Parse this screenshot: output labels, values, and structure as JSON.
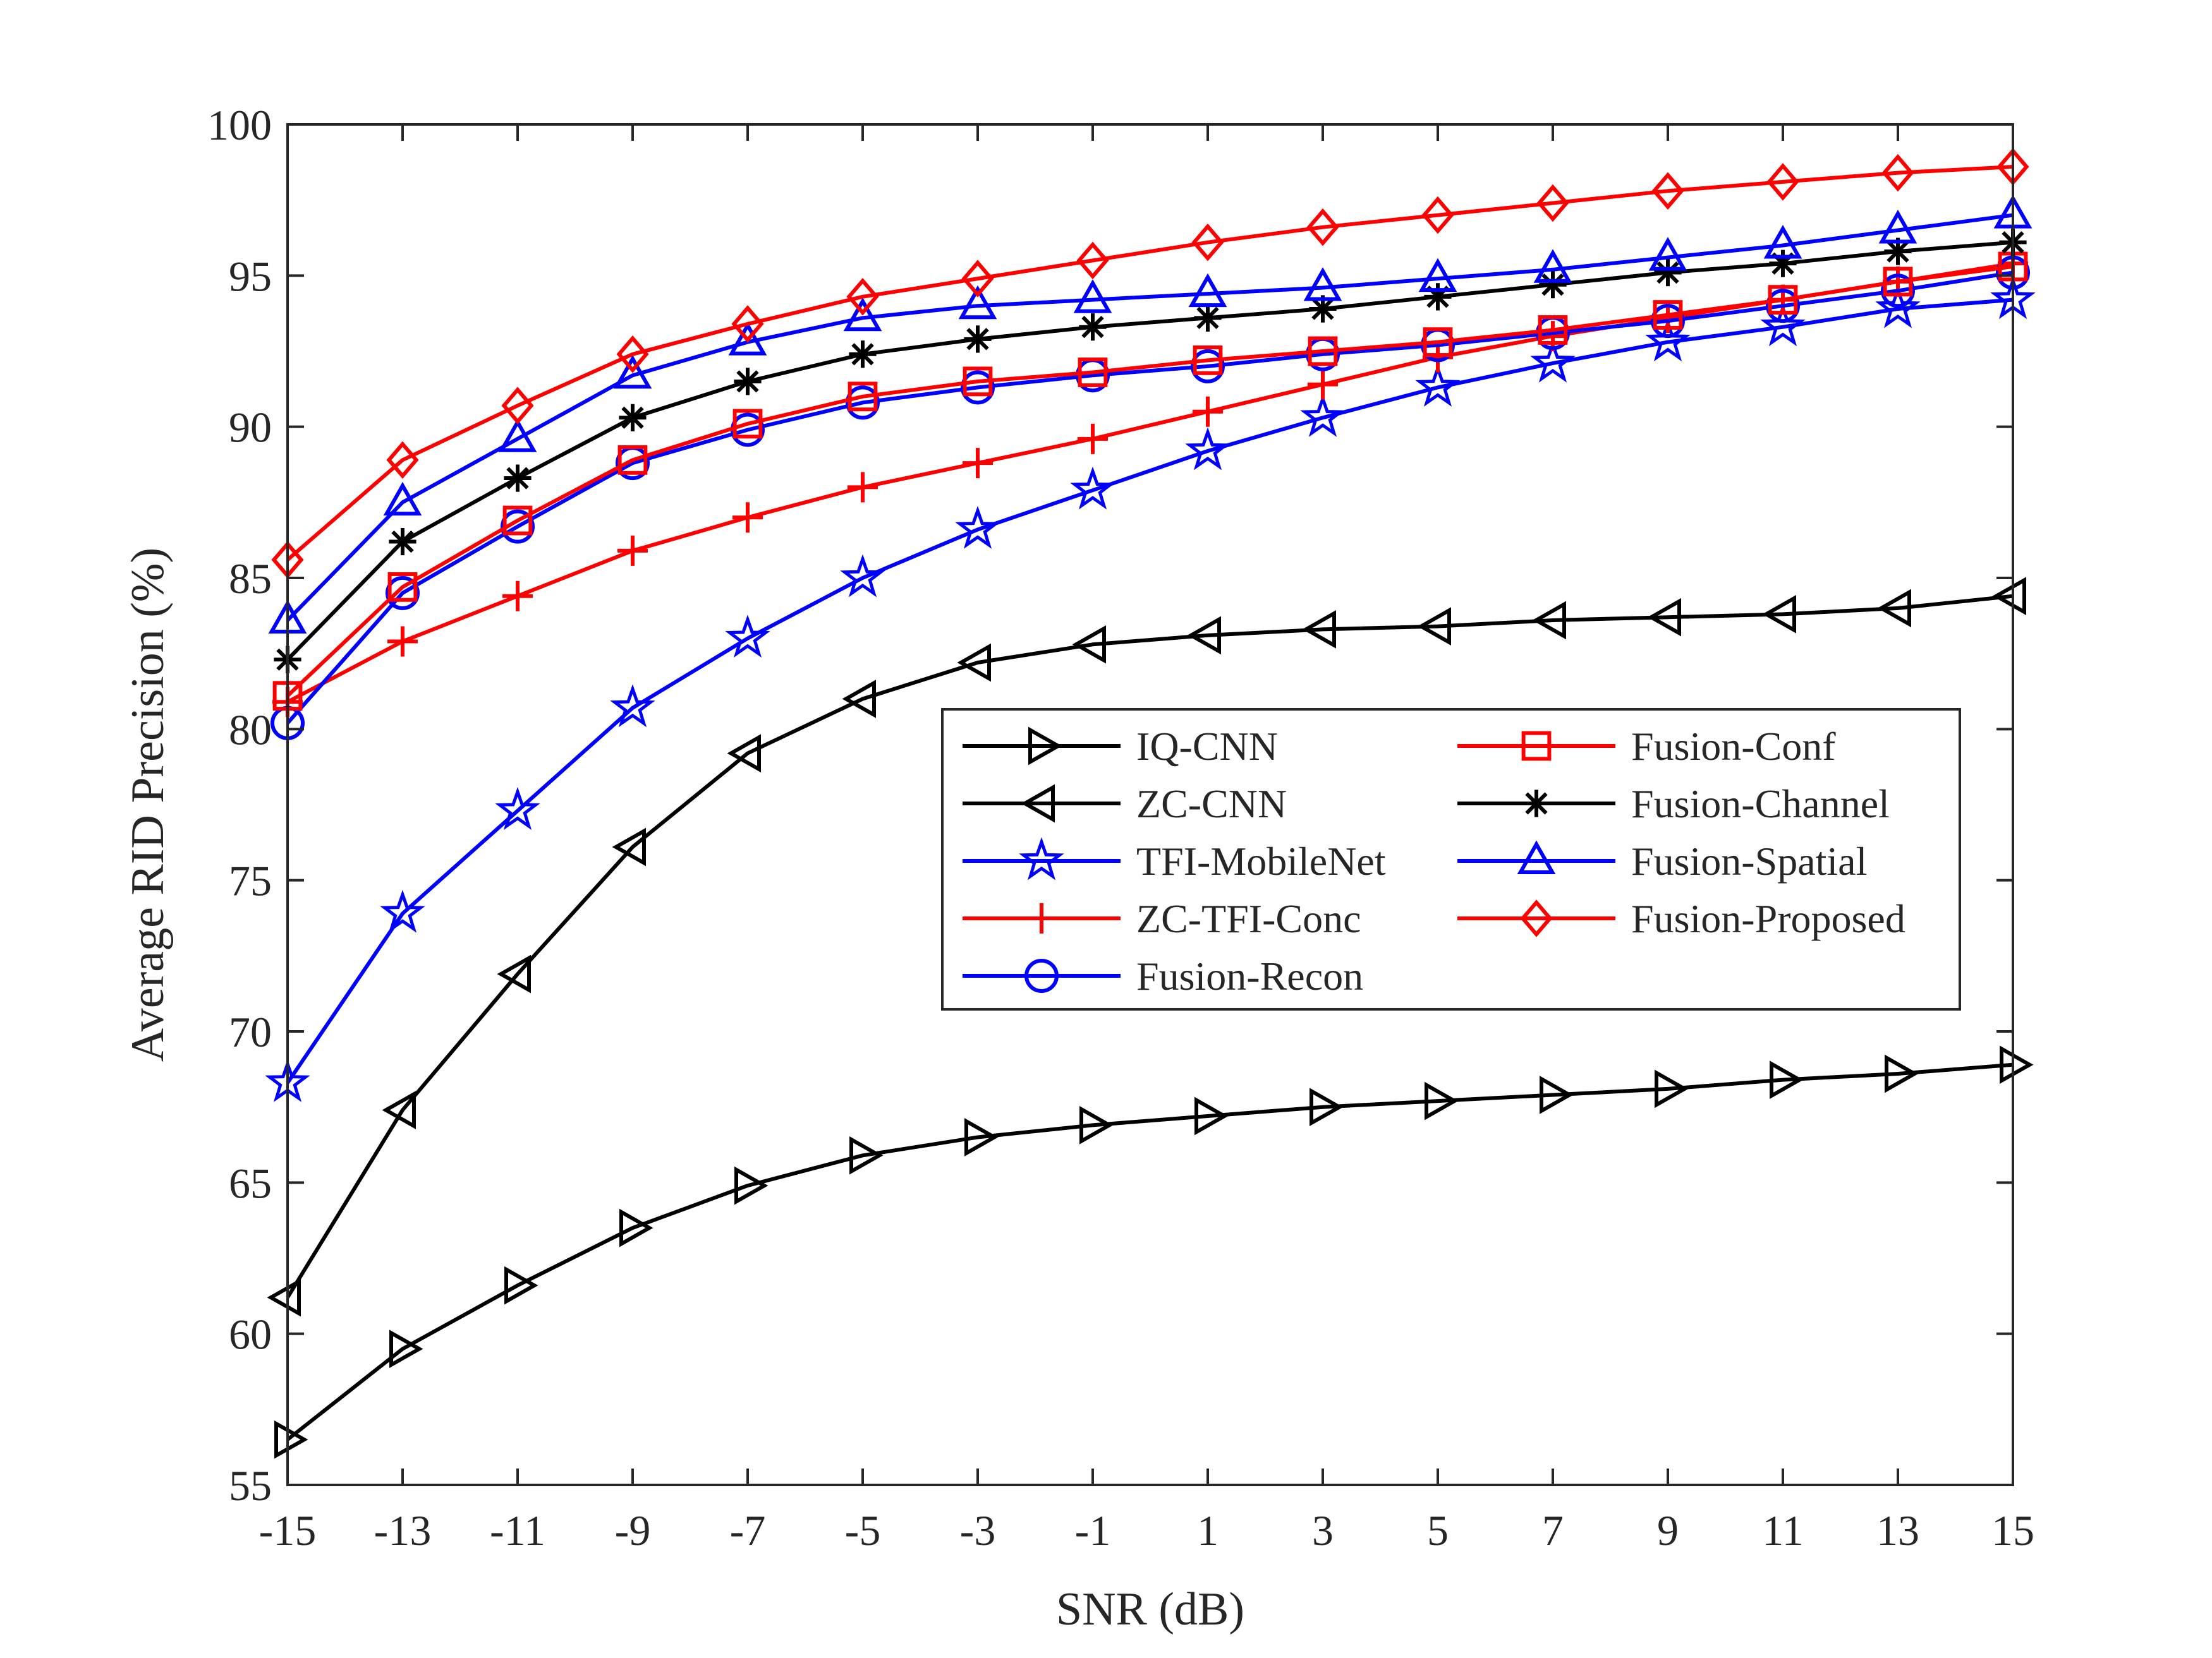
{
  "chart_data": {
    "type": "line",
    "title": "",
    "xlabel": "SNR (dB)",
    "ylabel": "Average RID Precision (%)",
    "x": [
      -15,
      -13,
      -11,
      -9,
      -7,
      -5,
      -3,
      -1,
      1,
      3,
      5,
      7,
      9,
      11,
      13,
      15
    ],
    "x_tick_labels": [
      "-15",
      "-13",
      "-11",
      "-9",
      "-7",
      "-5",
      "-3",
      "-1",
      "1",
      "3",
      "5",
      "7",
      "9",
      "11",
      "13",
      "15"
    ],
    "xlim": [
      -15,
      15
    ],
    "ylim": [
      55,
      100
    ],
    "y_ticks": [
      55,
      60,
      65,
      70,
      75,
      80,
      85,
      90,
      95,
      100
    ],
    "y_tick_labels": [
      "55",
      "60",
      "65",
      "70",
      "75",
      "80",
      "85",
      "90",
      "95",
      "100"
    ],
    "legend_position": "center-right",
    "grid": false,
    "series": [
      {
        "name": "IQ-CNN",
        "color": "#000000",
        "marker": "triangle-right",
        "values": [
          56.5,
          59.5,
          61.6,
          63.5,
          64.9,
          65.9,
          66.5,
          66.9,
          67.2,
          67.5,
          67.7,
          67.9,
          68.1,
          68.4,
          68.6,
          68.9
        ]
      },
      {
        "name": "ZC-CNN",
        "color": "#000000",
        "marker": "triangle-left",
        "values": [
          61.2,
          67.4,
          71.9,
          76.1,
          79.2,
          81.0,
          82.2,
          82.8,
          83.1,
          83.3,
          83.4,
          83.6,
          83.7,
          83.8,
          84.0,
          84.4
        ]
      },
      {
        "name": "TFI-MobileNet",
        "color": "#0000ff",
        "marker": "pentagram",
        "values": [
          68.3,
          73.9,
          77.3,
          80.7,
          83.0,
          85.0,
          86.6,
          87.9,
          89.2,
          90.3,
          91.3,
          92.1,
          92.8,
          93.3,
          93.9,
          94.2
        ]
      },
      {
        "name": "ZC-TFI-Conc",
        "color": "#ff0000",
        "marker": "plus",
        "values": [
          80.9,
          82.9,
          84.4,
          85.9,
          87.0,
          88.0,
          88.8,
          89.6,
          90.5,
          91.4,
          92.3,
          93.0,
          93.6,
          94.2,
          94.8,
          95.4
        ]
      },
      {
        "name": "Fusion-Recon",
        "color": "#0000ff",
        "marker": "circle",
        "values": [
          80.2,
          84.5,
          86.7,
          88.8,
          89.9,
          90.8,
          91.3,
          91.7,
          92.0,
          92.4,
          92.7,
          93.1,
          93.5,
          94.0,
          94.5,
          95.1
        ]
      },
      {
        "name": "Fusion-Conf",
        "color": "#ff0000",
        "marker": "square",
        "values": [
          81.1,
          84.7,
          86.9,
          88.9,
          90.1,
          91.0,
          91.5,
          91.8,
          92.2,
          92.5,
          92.8,
          93.2,
          93.7,
          94.2,
          94.8,
          95.3
        ]
      },
      {
        "name": "Fusion-Channel",
        "color": "#000000",
        "marker": "asterisk",
        "values": [
          82.3,
          86.2,
          88.3,
          90.3,
          91.5,
          92.4,
          92.9,
          93.3,
          93.6,
          93.9,
          94.3,
          94.7,
          95.1,
          95.4,
          95.8,
          96.1
        ]
      },
      {
        "name": "Fusion-Spatial",
        "color": "#0000ff",
        "marker": "triangle-up",
        "values": [
          83.6,
          87.5,
          89.6,
          91.7,
          92.8,
          93.6,
          94.0,
          94.2,
          94.4,
          94.6,
          94.9,
          95.2,
          95.6,
          96.0,
          96.5,
          97.0
        ]
      },
      {
        "name": "Fusion-Proposed",
        "color": "#ff0000",
        "marker": "diamond",
        "values": [
          85.6,
          88.9,
          90.7,
          92.4,
          93.4,
          94.3,
          94.9,
          95.5,
          96.1,
          96.6,
          97.0,
          97.4,
          97.8,
          98.1,
          98.4,
          98.6
        ]
      }
    ]
  }
}
